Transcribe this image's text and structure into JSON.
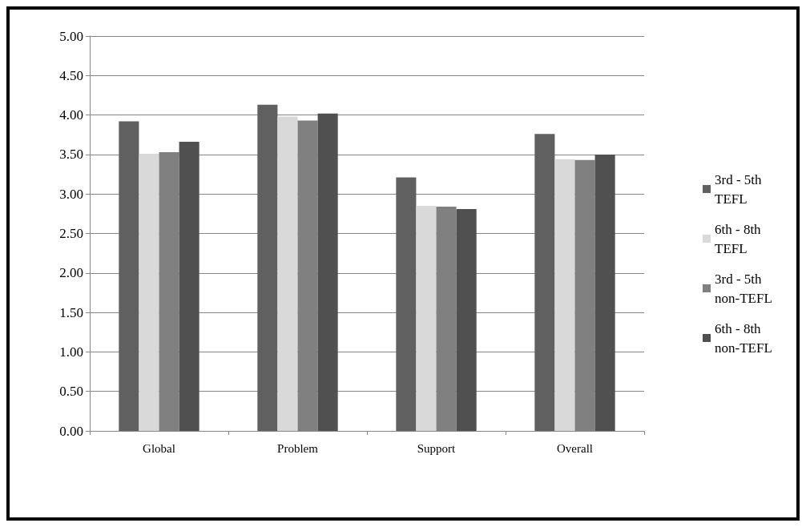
{
  "chart_data": {
    "type": "bar",
    "categories": [
      "Global",
      "Problem",
      "Support",
      "Overall"
    ],
    "series": [
      {
        "name": "3rd - 5th TEFL",
        "color": "#606060",
        "values": [
          3.92,
          4.13,
          3.21,
          3.76
        ]
      },
      {
        "name": "6th - 8th TEFL",
        "color": "#d9d9d9",
        "values": [
          3.51,
          3.98,
          2.85,
          3.44
        ]
      },
      {
        "name": "3rd - 5th non-TEFL",
        "color": "#808080",
        "values": [
          3.53,
          3.93,
          2.84,
          3.43
        ]
      },
      {
        "name": "6th - 8th non-TEFL",
        "color": "#505050",
        "values": [
          3.66,
          4.02,
          2.81,
          3.5
        ]
      }
    ],
    "ylim": [
      0,
      5
    ],
    "yticks": [
      {
        "value": 0,
        "label": "0.00"
      },
      {
        "value": 0.5,
        "label": "0.50"
      },
      {
        "value": 1,
        "label": "1.00"
      },
      {
        "value": 1.5,
        "label": "1.50"
      },
      {
        "value": 2,
        "label": "2.00"
      },
      {
        "value": 2.5,
        "label": "2.50"
      },
      {
        "value": 3,
        "label": "3.00"
      },
      {
        "value": 3.5,
        "label": "3.50"
      },
      {
        "value": 4,
        "label": "4.00"
      },
      {
        "value": 4.5,
        "label": "4.50"
      },
      {
        "value": 5,
        "label": "5.00"
      }
    ],
    "grid": "y",
    "legend": "right"
  }
}
